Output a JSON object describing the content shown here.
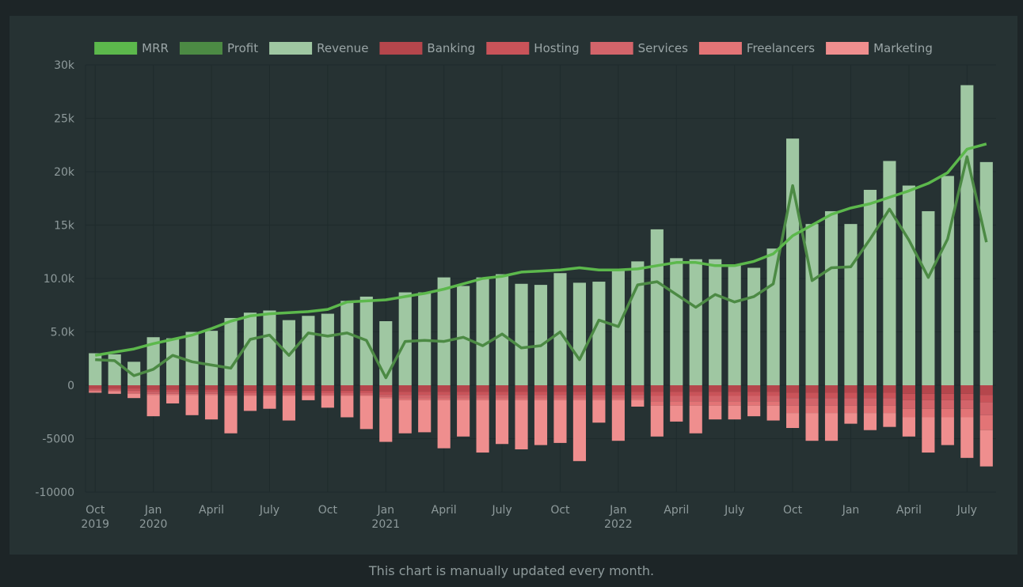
{
  "caption": "This chart is manually updated every month.",
  "colors": {
    "panel_bg": "#263233",
    "page_bg": "#1d2527",
    "grid": "#1f2b2c",
    "axis_text": "#8e9a9b",
    "legend_text": "#9aa5a6"
  },
  "chart_data": {
    "type": "bar",
    "stacked": true,
    "grid": true,
    "legend_position": "top",
    "ylim": [
      -10000,
      30000
    ],
    "y_ticks": [
      {
        "value": 30000,
        "label": "30k"
      },
      {
        "value": 25000,
        "label": "25k"
      },
      {
        "value": 20000,
        "label": "20k"
      },
      {
        "value": 15000,
        "label": "15k"
      },
      {
        "value": 10000,
        "label": "10.0k"
      },
      {
        "value": 5000,
        "label": "5.0k"
      },
      {
        "value": 0,
        "label": "0"
      },
      {
        "value": -5000,
        "label": "-5000"
      },
      {
        "value": -10000,
        "label": "-10000"
      }
    ],
    "months": [
      "2019-10",
      "2019-11",
      "2019-12",
      "2020-01",
      "2020-02",
      "2020-03",
      "2020-04",
      "2020-05",
      "2020-06",
      "2020-07",
      "2020-08",
      "2020-09",
      "2020-10",
      "2020-11",
      "2020-12",
      "2021-01",
      "2021-02",
      "2021-03",
      "2021-04",
      "2021-05",
      "2021-06",
      "2021-07",
      "2021-08",
      "2021-09",
      "2021-10",
      "2021-11",
      "2021-12",
      "2022-01",
      "2022-02",
      "2022-03",
      "2022-04",
      "2022-05",
      "2022-06",
      "2022-07",
      "2022-08",
      "2022-09",
      "2022-10",
      "2022-11",
      "2022-12",
      "2023-01",
      "2023-02",
      "2023-03",
      "2023-04",
      "2023-05",
      "2023-06",
      "2023-07",
      "2023-08"
    ],
    "x_ticks": [
      {
        "index": 0,
        "label": "Oct",
        "sublabel": "2019"
      },
      {
        "index": 3,
        "label": "Jan",
        "sublabel": "2020"
      },
      {
        "index": 6,
        "label": "April",
        "sublabel": ""
      },
      {
        "index": 9,
        "label": "July",
        "sublabel": ""
      },
      {
        "index": 12,
        "label": "Oct",
        "sublabel": ""
      },
      {
        "index": 15,
        "label": "Jan",
        "sublabel": "2021"
      },
      {
        "index": 18,
        "label": "April",
        "sublabel": ""
      },
      {
        "index": 21,
        "label": "July",
        "sublabel": ""
      },
      {
        "index": 24,
        "label": "Oct",
        "sublabel": ""
      },
      {
        "index": 27,
        "label": "Jan",
        "sublabel": "2022"
      },
      {
        "index": 30,
        "label": "April",
        "sublabel": ""
      },
      {
        "index": 33,
        "label": "July",
        "sublabel": ""
      },
      {
        "index": 36,
        "label": "Oct",
        "sublabel": ""
      },
      {
        "index": 39,
        "label": "Jan",
        "sublabel": ""
      },
      {
        "index": 42,
        "label": "April",
        "sublabel": ""
      },
      {
        "index": 45,
        "label": "July",
        "sublabel": ""
      }
    ],
    "legend": [
      {
        "name": "MRR",
        "color": "#5cb84c"
      },
      {
        "name": "Profit",
        "color": "#4c8a44"
      },
      {
        "name": "Revenue",
        "color": "#9fc7a2"
      },
      {
        "name": "Banking",
        "color": "#b5464c"
      },
      {
        "name": "Hosting",
        "color": "#c95359"
      },
      {
        "name": "Services",
        "color": "#d3646a"
      },
      {
        "name": "Freelancers",
        "color": "#e37476"
      },
      {
        "name": "Marketing",
        "color": "#ef8e8e"
      }
    ],
    "revenue": [
      3000,
      2900,
      2200,
      4500,
      4400,
      5000,
      5100,
      6300,
      6800,
      7000,
      6100,
      6500,
      6700,
      7900,
      8300,
      6000,
      8700,
      8700,
      10100,
      9300,
      10100,
      10400,
      9500,
      9400,
      10500,
      9600,
      9700,
      10700,
      11600,
      14600,
      11900,
      11800,
      11800,
      11300,
      11000,
      12800,
      23100,
      15100,
      16300,
      15100,
      18300,
      21000,
      18700,
      16300,
      19600,
      28100,
      20900
    ],
    "expenses": {
      "Banking": [
        -300,
        -300,
        -300,
        -400,
        -400,
        -400,
        -400,
        -500,
        -500,
        -500,
        -500,
        -500,
        -500,
        -500,
        -500,
        -600,
        -600,
        -600,
        -600,
        -600,
        -600,
        -600,
        -600,
        -600,
        -600,
        -600,
        -600,
        -600,
        -600,
        -600,
        -600,
        -600,
        -600,
        -600,
        -600,
        -600,
        -700,
        -700,
        -700,
        -700,
        -700,
        -700,
        -800,
        -800,
        -800,
        -800,
        -900
      ],
      "Hosting": [
        -100,
        -100,
        -200,
        -200,
        -200,
        -200,
        -200,
        -200,
        -200,
        -200,
        -200,
        -200,
        -200,
        -200,
        -200,
        -300,
        -300,
        -300,
        -300,
        -300,
        -300,
        -300,
        -300,
        -300,
        -300,
        -300,
        -300,
        -300,
        -300,
        -400,
        -400,
        -400,
        -400,
        -400,
        -400,
        -400,
        -500,
        -500,
        -500,
        -500,
        -500,
        -500,
        -600,
        -600,
        -600,
        -600,
        -700
      ],
      "Services": [
        -100,
        -100,
        -200,
        -200,
        -200,
        -200,
        -200,
        -200,
        -200,
        -200,
        -200,
        -200,
        -200,
        -200,
        -200,
        -200,
        -300,
        -300,
        -300,
        -300,
        -300,
        -300,
        -300,
        -300,
        -300,
        -300,
        -300,
        -300,
        -300,
        -500,
        -500,
        -500,
        -500,
        -500,
        -500,
        -500,
        -700,
        -700,
        -700,
        -700,
        -700,
        -700,
        -800,
        -800,
        -800,
        -800,
        -1200
      ],
      "Freelancers": [
        -100,
        -100,
        -100,
        -100,
        -100,
        -100,
        -100,
        -100,
        -100,
        -100,
        -100,
        -100,
        -100,
        -100,
        -100,
        -100,
        -200,
        -200,
        -200,
        -200,
        -200,
        -200,
        -200,
        -200,
        -200,
        -200,
        -200,
        -200,
        -200,
        -400,
        -400,
        -400,
        -400,
        -400,
        -400,
        -400,
        -700,
        -700,
        -700,
        -700,
        -700,
        -700,
        -800,
        -800,
        -800,
        -800,
        -1400
      ],
      "Marketing": [
        -100,
        -200,
        -400,
        -2000,
        -800,
        -1900,
        -2300,
        -3500,
        -1400,
        -1200,
        -2300,
        -400,
        -1100,
        -2000,
        -3100,
        -4100,
        -3100,
        -3000,
        -4500,
        -3400,
        -4900,
        -4100,
        -4600,
        -4200,
        -4000,
        -5700,
        -2100,
        -3800,
        -600,
        -2900,
        -1500,
        -2600,
        -1300,
        -1300,
        -1000,
        -1400,
        -1400,
        -2600,
        -2600,
        -1000,
        -1600,
        -1300,
        -1800,
        -3300,
        -2600,
        -3800,
        -3400
      ]
    },
    "mrr": [
      2800,
      3100,
      3400,
      3900,
      4300,
      4700,
      5300,
      6000,
      6500,
      6700,
      6800,
      6900,
      7100,
      7800,
      7900,
      8000,
      8300,
      8600,
      9000,
      9500,
      10000,
      10200,
      10600,
      10700,
      10800,
      11000,
      10800,
      10800,
      10900,
      11200,
      11500,
      11500,
      11200,
      11200,
      11600,
      12300,
      14000,
      15000,
      16000,
      16600,
      17000,
      17600,
      18200,
      18900,
      19900,
      22100,
      22600
    ],
    "profit": [
      2400,
      2300,
      900,
      1500,
      2800,
      2200,
      1900,
      1600,
      4300,
      4700,
      2800,
      4900,
      4600,
      4900,
      4200,
      700,
      4100,
      4200,
      4100,
      4500,
      3700,
      4800,
      3500,
      3700,
      5000,
      2400,
      6100,
      5500,
      9400,
      9700,
      8500,
      7300,
      8500,
      7800,
      8300,
      9500,
      18700,
      9800,
      11000,
      11100,
      13700,
      16500,
      13600,
      10100,
      13700,
      21400,
      13400
    ]
  }
}
